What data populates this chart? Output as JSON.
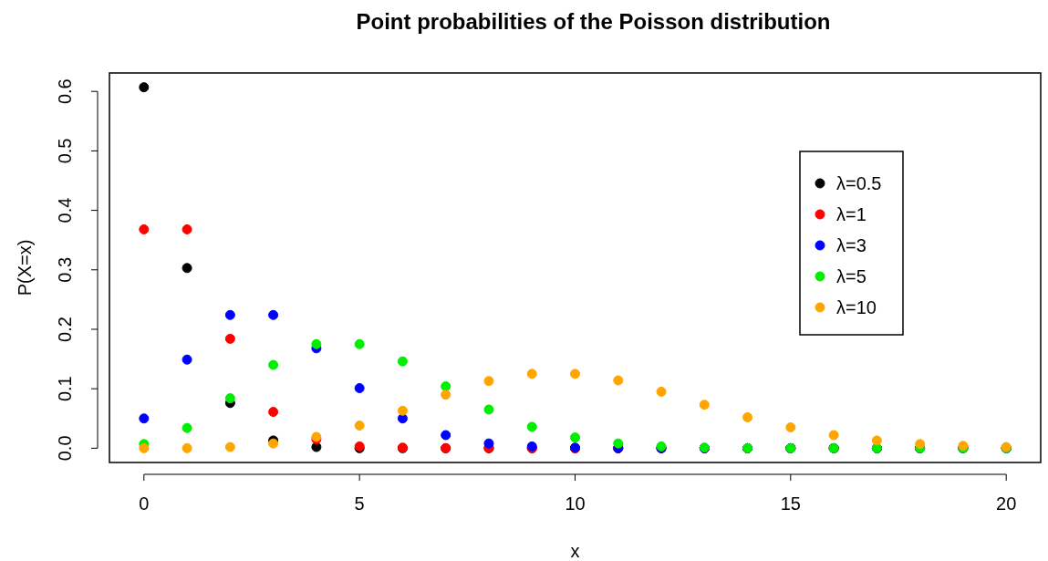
{
  "chart_data": {
    "type": "scatter",
    "title": "Point probabilities of the Poisson distribution",
    "xlabel": "x",
    "ylabel": "P(X=x)",
    "x": [
      0,
      1,
      2,
      3,
      4,
      5,
      6,
      7,
      8,
      9,
      10,
      11,
      12,
      13,
      14,
      15,
      16,
      17,
      18,
      19,
      20
    ],
    "series": [
      {
        "name": "λ=0.5",
        "color": "#000000",
        "values": [
          0.607,
          0.303,
          0.076,
          0.013,
          0.002,
          0,
          0,
          0,
          0,
          0,
          0,
          0,
          0,
          0,
          0,
          0,
          0,
          0,
          0,
          0,
          0
        ]
      },
      {
        "name": "λ=1",
        "color": "#ff0000",
        "values": [
          0.368,
          0.368,
          0.184,
          0.061,
          0.015,
          0.003,
          0.001,
          0,
          0,
          0,
          0,
          0,
          0,
          0,
          0,
          0,
          0,
          0,
          0,
          0,
          0
        ]
      },
      {
        "name": "λ=3",
        "color": "#0000ff",
        "values": [
          0.05,
          0.149,
          0.224,
          0.224,
          0.168,
          0.101,
          0.05,
          0.022,
          0.008,
          0.003,
          0.001,
          0,
          0,
          0,
          0,
          0,
          0,
          0,
          0,
          0,
          0
        ]
      },
      {
        "name": "λ=5",
        "color": "#00ee00",
        "values": [
          0.007,
          0.034,
          0.084,
          0.14,
          0.175,
          0.175,
          0.146,
          0.104,
          0.065,
          0.036,
          0.018,
          0.008,
          0.003,
          0.001,
          0,
          0,
          0,
          0,
          0,
          0,
          0
        ]
      },
      {
        "name": "λ=10",
        "color": "#ffa500",
        "values": [
          0,
          0,
          0.002,
          0.008,
          0.019,
          0.038,
          0.063,
          0.09,
          0.113,
          0.125,
          0.125,
          0.114,
          0.095,
          0.073,
          0.052,
          0.035,
          0.022,
          0.013,
          0.007,
          0.004,
          0.002
        ]
      }
    ],
    "xlim": [
      -0.8,
      20.8
    ],
    "ylim": [
      -0.024,
      0.631
    ],
    "xticks": [
      0,
      5,
      10,
      15,
      20
    ],
    "yticks": [
      {
        "value": 0,
        "label": "0.0"
      },
      0.1,
      0.2,
      0.3,
      0.4,
      0.5,
      0.6
    ],
    "legend": "top right",
    "marker": "circle",
    "grid": false
  }
}
